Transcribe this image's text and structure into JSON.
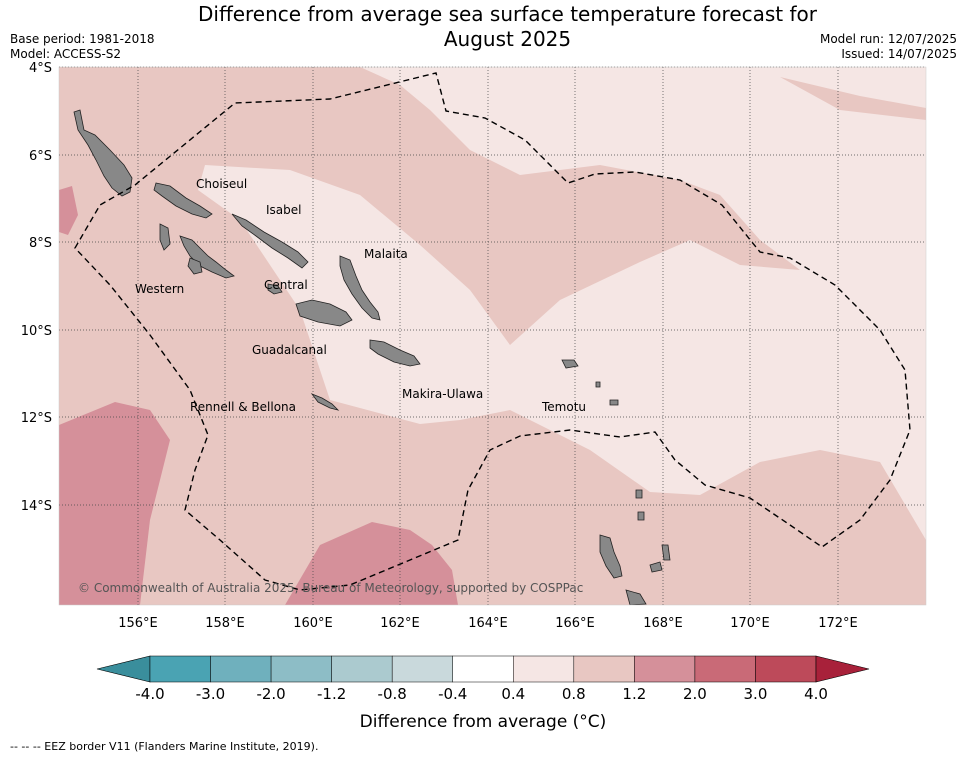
{
  "header": {
    "title_line1": "Difference from average sea surface temperature forecast for",
    "title_line2": "August 2025",
    "base_period": "Base period: 1981-2018",
    "model": "Model: ACCESS-S2",
    "model_run": "Model run: 12/07/2025",
    "issued": "Issued: 14/07/2025"
  },
  "map": {
    "lat_ticks": [
      "4°S",
      "6°S",
      "8°S",
      "10°S",
      "12°S",
      "14°S"
    ],
    "lon_ticks": [
      "156°E",
      "158°E",
      "160°E",
      "162°E",
      "164°E",
      "166°E",
      "168°E",
      "170°E",
      "172°E"
    ],
    "provinces": [
      "Choiseul",
      "Isabel",
      "Malaita",
      "Western",
      "Central",
      "Guadalcanal",
      "Makira-Ulawa",
      "Temotu",
      "Rennell & Bellona"
    ],
    "copyright": "© Commonwealth of Australia 2025, Bureau of Meteorology, supported by COSPPac"
  },
  "colorbar": {
    "tick_labels": [
      "-4.0",
      "-3.0",
      "-2.0",
      "-1.2",
      "-0.8",
      "-0.4",
      "0.4",
      "0.8",
      "1.2",
      "2.0",
      "3.0",
      "4.0"
    ],
    "colors": [
      "#4aa3b3",
      "#6fb0bd",
      "#8dbdc6",
      "#abcacf",
      "#c9d9dc",
      "#ffffff",
      "#f5e6e4",
      "#e8c7c2",
      "#d5909a",
      "#c96a77",
      "#bd4a5a"
    ],
    "low_arrow_color": "#3a8e9c",
    "high_arrow_color": "#a8213a",
    "label": "Difference from average (°C)"
  },
  "footer": {
    "legend_text": "--  --  -- EEZ border V11 (Flanders Marine Institute, 2019)."
  }
}
